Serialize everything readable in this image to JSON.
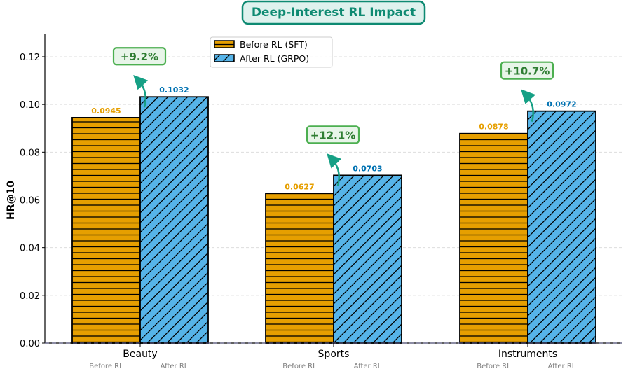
{
  "chart_data": {
    "type": "bar",
    "title": "Deep-Interest RL Impact",
    "xlabel": "",
    "ylabel": "HR@10",
    "ylim": [
      0,
      0.13
    ],
    "yticks": [
      "0.00",
      "0.02",
      "0.04",
      "0.06",
      "0.08",
      "0.10",
      "0.12"
    ],
    "grid": true,
    "legend_position": "top-left",
    "categories": [
      "Beauty",
      "Sports",
      "Instruments"
    ],
    "bar_sublabels": [
      "Before RL",
      "After RL"
    ],
    "series": [
      {
        "name": "Before RL (SFT)",
        "values": [
          0.0945,
          0.0627,
          0.0878
        ],
        "labels": [
          "0.0945",
          "0.0627",
          "0.0878"
        ],
        "color": "#E69F00",
        "hatch": "horizontal"
      },
      {
        "name": "After RL (GRPO)",
        "values": [
          0.1032,
          0.0703,
          0.0972
        ],
        "labels": [
          "0.1032",
          "0.0703",
          "0.0972"
        ],
        "color": "#56B4E9",
        "hatch": "diagonal"
      }
    ],
    "annotations": [
      "+9.2%",
      "+12.1%",
      "+10.7%"
    ],
    "colors": {
      "before_label": "#E69F00",
      "after_label": "#0072B2",
      "arrow": "#16a085",
      "annotation_border": "#4caf50",
      "annotation_fill": "#e8f5e9",
      "title_border": "#0e8a72",
      "title_fill": "#dff2ee"
    }
  }
}
